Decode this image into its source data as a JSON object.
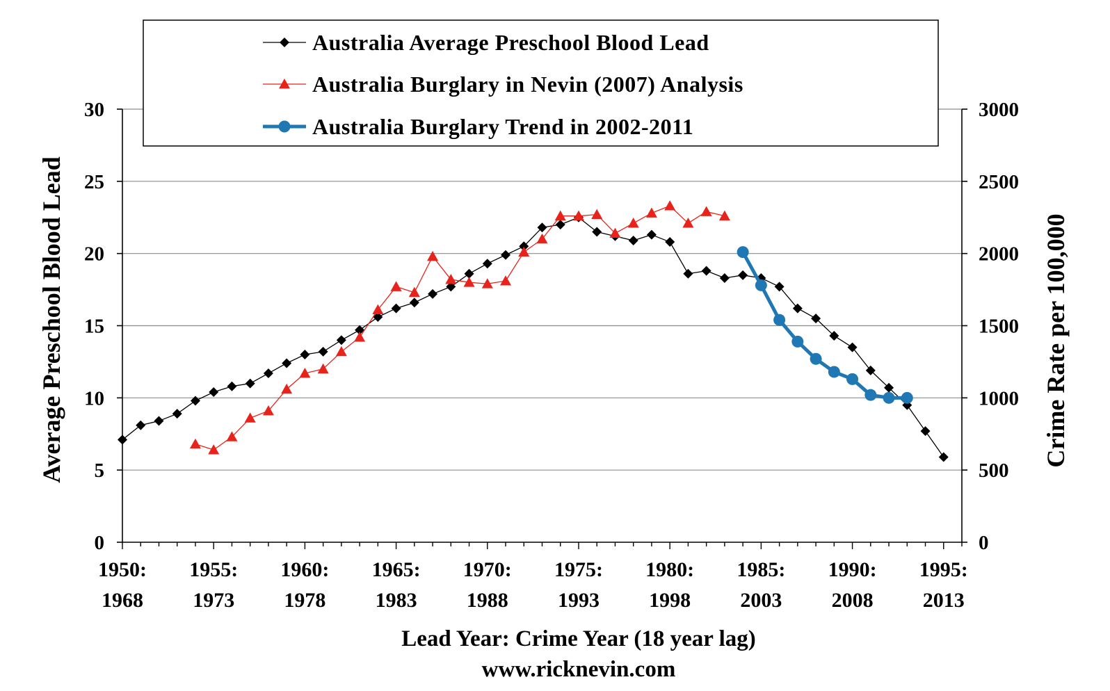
{
  "chart_data": {
    "type": "line",
    "title": "",
    "xlabel": "Lead Year: Crime Year (18 year lag)",
    "footer": "www.ricknevin.com",
    "ylabel": "Average Preschool Blood Lead",
    "y2label": "Crime Rate per 100,000",
    "xlim": [
      1950,
      1996
    ],
    "ylim": [
      0,
      30
    ],
    "y2lim": [
      0,
      3000
    ],
    "yticks": [
      "0",
      "5",
      "10",
      "15",
      "20",
      "25",
      "30"
    ],
    "y2ticks": [
      "0",
      "500",
      "1000",
      "1500",
      "2000",
      "2500",
      "3000"
    ],
    "xticks": [
      {
        "x": 1950,
        "line1": "1950:",
        "line2": "1968"
      },
      {
        "x": 1955,
        "line1": "1955:",
        "line2": "1973"
      },
      {
        "x": 1960,
        "line1": "1960:",
        "line2": "1978"
      },
      {
        "x": 1965,
        "line1": "1965:",
        "line2": "1983"
      },
      {
        "x": 1970,
        "line1": "1970:",
        "line2": "1988"
      },
      {
        "x": 1975,
        "line1": "1975:",
        "line2": "1993"
      },
      {
        "x": 1980,
        "line1": "1980:",
        "line2": "1998"
      },
      {
        "x": 1985,
        "line1": "1985:",
        "line2": "2003"
      },
      {
        "x": 1990,
        "line1": "1990:",
        "line2": "2008"
      },
      {
        "x": 1995,
        "line1": "1995:",
        "line2": "2013"
      }
    ],
    "grid": true,
    "legend_position": "top",
    "series": [
      {
        "name": "Australia Average Preschool Blood Lead",
        "axis": "left",
        "color": "#000000",
        "marker": "diamond",
        "x": [
          1950,
          1951,
          1952,
          1953,
          1954,
          1955,
          1956,
          1957,
          1958,
          1959,
          1960,
          1961,
          1962,
          1963,
          1964,
          1965,
          1966,
          1967,
          1968,
          1969,
          1970,
          1971,
          1972,
          1973,
          1974,
          1975,
          1976,
          1977,
          1978,
          1979,
          1980,
          1981,
          1982,
          1983,
          1984,
          1985,
          1986,
          1987,
          1988,
          1989,
          1990,
          1991,
          1992,
          1993,
          1994,
          1995
        ],
        "values": [
          7.1,
          8.1,
          8.4,
          8.9,
          9.8,
          10.4,
          10.8,
          11.0,
          11.7,
          12.4,
          13.0,
          13.2,
          14.0,
          14.7,
          15.6,
          16.2,
          16.6,
          17.2,
          17.7,
          18.6,
          19.3,
          19.9,
          20.5,
          21.8,
          22.0,
          22.5,
          21.5,
          21.2,
          20.9,
          21.3,
          20.8,
          18.6,
          18.8,
          18.3,
          18.5,
          18.3,
          17.7,
          16.2,
          15.5,
          14.3,
          13.5,
          11.9,
          10.7,
          9.5,
          7.7,
          5.9
        ]
      },
      {
        "name": "Australia Burglary in Nevin (2007) Analysis",
        "axis": "right",
        "color": "#e8231c",
        "marker": "triangle",
        "x": [
          1954,
          1955,
          1956,
          1957,
          1958,
          1959,
          1960,
          1961,
          1962,
          1963,
          1964,
          1965,
          1966,
          1967,
          1968,
          1969,
          1970,
          1971,
          1972,
          1973,
          1974,
          1975,
          1976,
          1977,
          1978,
          1979,
          1980,
          1981,
          1982,
          1983
        ],
        "values": [
          680,
          640,
          730,
          860,
          910,
          1060,
          1170,
          1200,
          1320,
          1420,
          1610,
          1770,
          1730,
          1980,
          1820,
          1800,
          1790,
          1810,
          2010,
          2100,
          2260,
          2260,
          2270,
          2140,
          2210,
          2280,
          2330,
          2210,
          2290,
          2260
        ]
      },
      {
        "name": "Australia Burglary Trend in 2002-2011",
        "axis": "right",
        "color": "#1f78b4",
        "marker": "circle",
        "x": [
          1984,
          1985,
          1986,
          1987,
          1988,
          1989,
          1990,
          1991,
          1992,
          1993
        ],
        "values": [
          2010,
          1780,
          1540,
          1390,
          1270,
          1180,
          1130,
          1020,
          1000,
          1000
        ]
      }
    ]
  }
}
